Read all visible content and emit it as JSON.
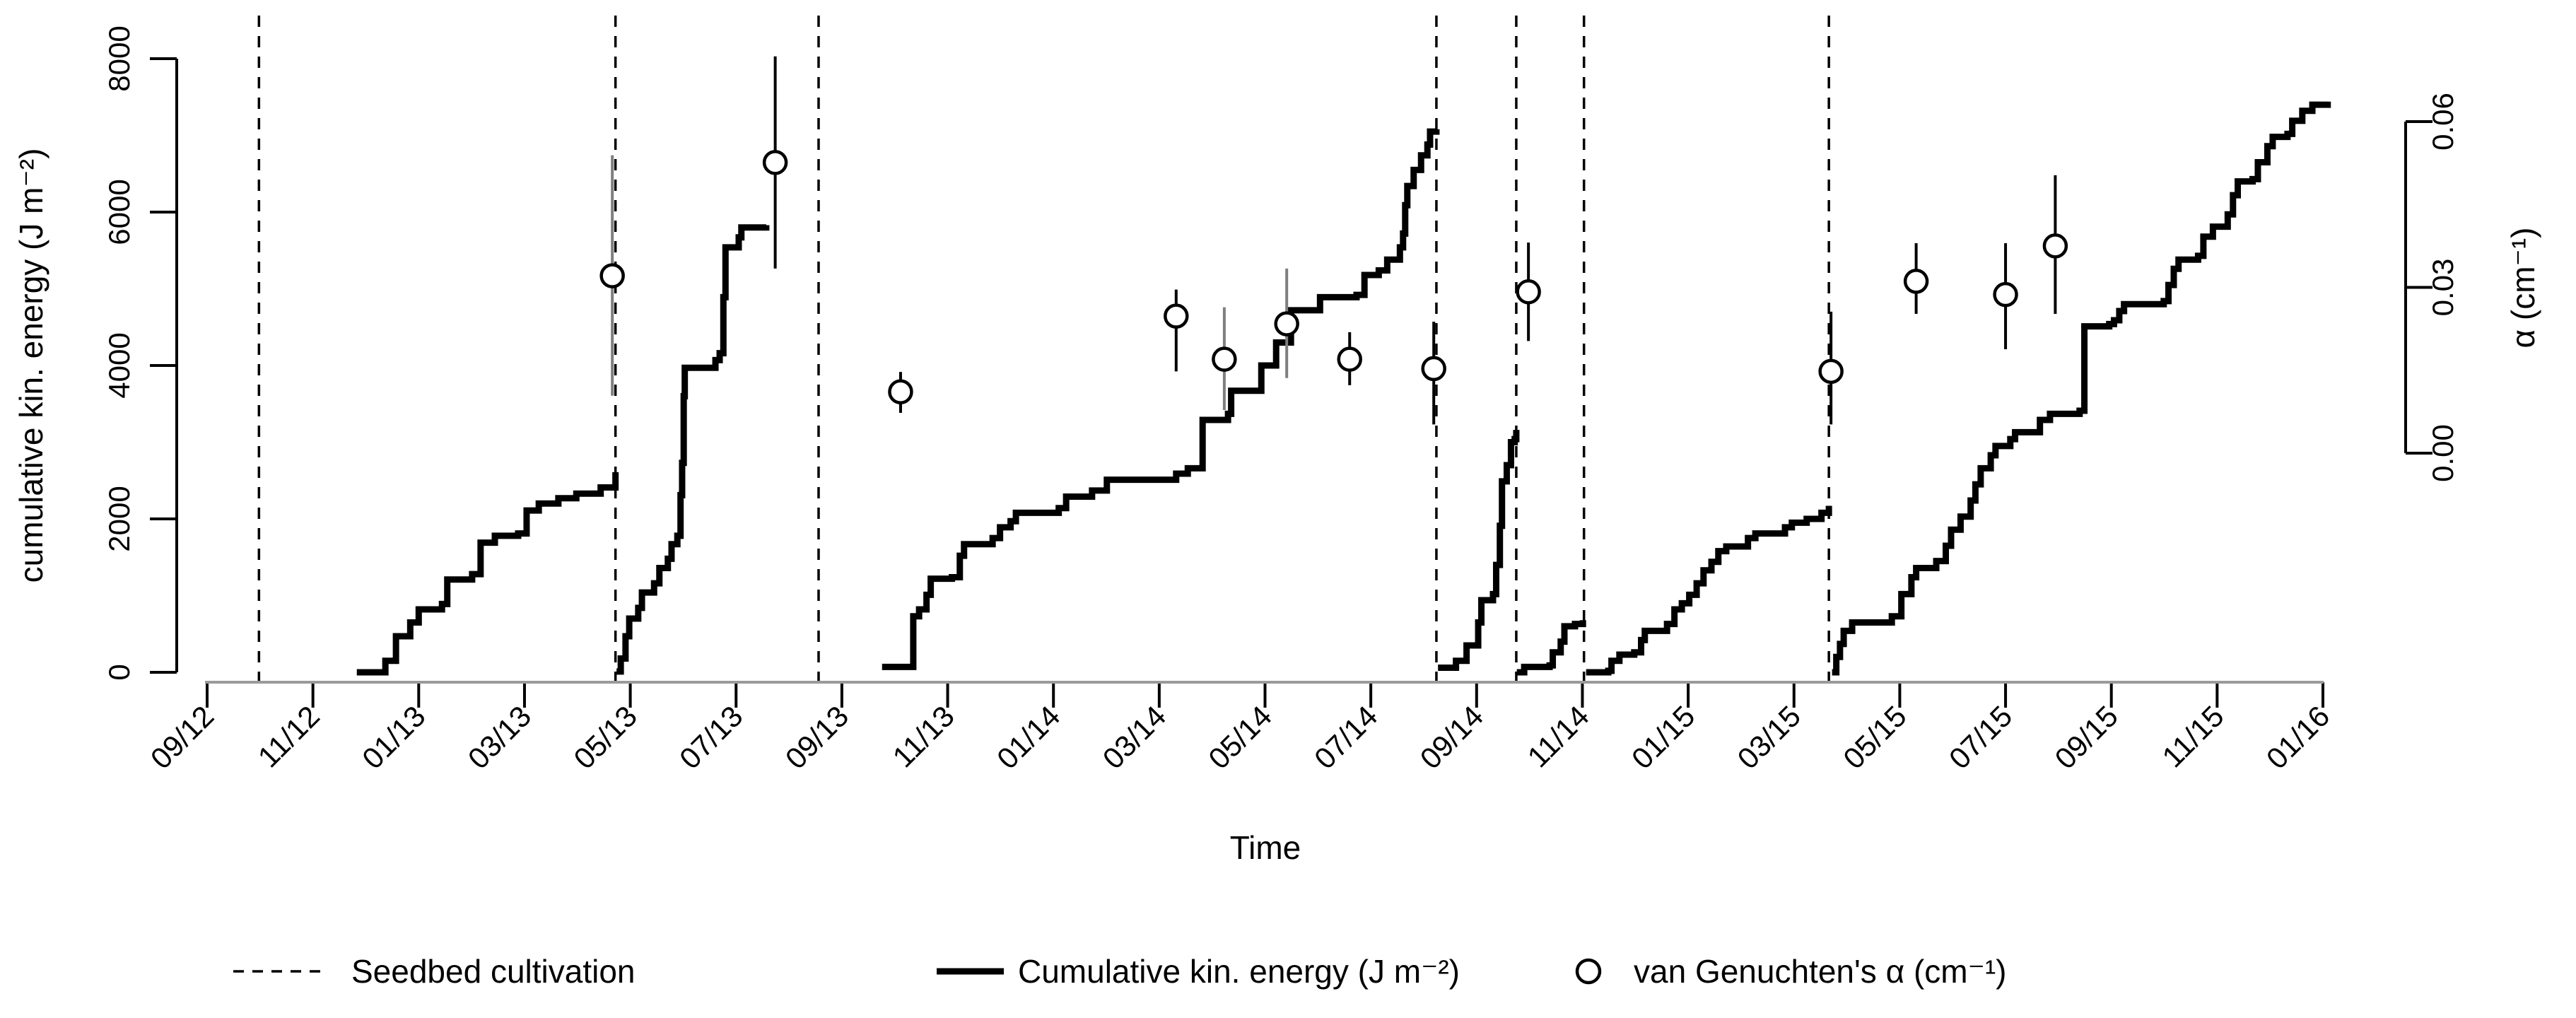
{
  "figure": {
    "x_axis": {
      "label": "Time",
      "tick_labels": [
        "09/12",
        "11/12",
        "01/13",
        "03/13",
        "05/13",
        "07/13",
        "09/13",
        "11/13",
        "01/14",
        "03/14",
        "05/14",
        "07/14",
        "09/14",
        "11/14",
        "01/15",
        "03/15",
        "05/15",
        "07/15",
        "09/15",
        "11/15",
        "01/16"
      ]
    },
    "left_axis": {
      "label": "cumulative kin. energy (J m⁻²)",
      "tick_labels": [
        "0",
        "2000",
        "4000",
        "6000",
        "8000"
      ]
    },
    "right_axis": {
      "label": "α (cm⁻¹)",
      "tick_labels": [
        "0.00",
        "0.03",
        "0.06"
      ]
    },
    "legend": {
      "seedbed_label": "Seedbed cultivation",
      "energy_label": "Cumulative kin. energy (J m⁻²)",
      "alpha_label": "van Genuchten's α (cm⁻¹)"
    },
    "colors": {
      "line": "#000000",
      "x_axis_line": "#9a9a9a",
      "gray_error_bar": "#7f7f7f",
      "background": "#ffffff"
    }
  },
  "chart_data": {
    "type": "line",
    "title": "",
    "xlabel": "Time",
    "ylabel_left": "cumulative kin. energy (J m⁻²)",
    "ylabel_right": "α (cm⁻¹)",
    "x_convention": "months elapsed since the 09/12 (Sep 2012) tick; 2 months per tick",
    "x_range_months": [
      0,
      40
    ],
    "ylim_left": [
      0,
      8000
    ],
    "ylim_right": [
      0,
      0.06
    ],
    "left_ticks": [
      0,
      2000,
      4000,
      6000,
      8000
    ],
    "right_ticks": [
      0.0,
      0.03,
      0.06
    ],
    "grid": false,
    "legend_position": "bottom",
    "seedbed_cultivation_months": [
      0.98,
      7.72,
      11.56,
      23.24,
      24.75,
      26.03,
      30.66
    ],
    "energy_series": [
      {
        "name": "season-2012-13a",
        "points": [
          [
            2.83,
            0
          ],
          [
            3.37,
            150
          ],
          [
            3.57,
            470
          ],
          [
            3.84,
            650
          ],
          [
            4.0,
            820
          ],
          [
            4.44,
            890
          ],
          [
            4.54,
            1210
          ],
          [
            5.01,
            1280
          ],
          [
            5.17,
            1690
          ],
          [
            5.44,
            1780
          ],
          [
            5.88,
            1810
          ],
          [
            6.04,
            2110
          ],
          [
            6.27,
            2200
          ],
          [
            6.64,
            2270
          ],
          [
            6.98,
            2330
          ],
          [
            7.44,
            2410
          ],
          [
            7.72,
            2610
          ]
        ]
      },
      {
        "name": "season-2013a",
        "points": [
          [
            7.74,
            10
          ],
          [
            7.82,
            180
          ],
          [
            7.91,
            470
          ],
          [
            7.98,
            700
          ],
          [
            8.15,
            840
          ],
          [
            8.22,
            1040
          ],
          [
            8.45,
            1160
          ],
          [
            8.55,
            1360
          ],
          [
            8.71,
            1480
          ],
          [
            8.78,
            1670
          ],
          [
            8.89,
            1780
          ],
          [
            8.95,
            2310
          ],
          [
            8.98,
            2730
          ],
          [
            9.01,
            3600
          ],
          [
            9.03,
            3970
          ],
          [
            9.61,
            4070
          ],
          [
            9.69,
            4160
          ],
          [
            9.76,
            4890
          ],
          [
            9.8,
            5540
          ],
          [
            10.05,
            5670
          ],
          [
            10.1,
            5800
          ],
          [
            10.57,
            5830
          ]
        ]
      },
      {
        "name": "season-2013-14",
        "points": [
          [
            12.76,
            70
          ],
          [
            13.32,
            70
          ],
          [
            13.35,
            730
          ],
          [
            13.46,
            820
          ],
          [
            13.6,
            1010
          ],
          [
            13.68,
            1220
          ],
          [
            14.08,
            1240
          ],
          [
            14.23,
            1520
          ],
          [
            14.31,
            1670
          ],
          [
            14.85,
            1750
          ],
          [
            14.99,
            1890
          ],
          [
            15.19,
            1970
          ],
          [
            15.29,
            2080
          ],
          [
            16.1,
            2140
          ],
          [
            16.24,
            2290
          ],
          [
            16.73,
            2370
          ],
          [
            17.01,
            2510
          ],
          [
            18.32,
            2590
          ],
          [
            18.54,
            2660
          ],
          [
            18.82,
            3290
          ],
          [
            19.3,
            3370
          ],
          [
            19.36,
            3670
          ],
          [
            19.93,
            4000
          ],
          [
            20.21,
            4300
          ],
          [
            20.49,
            4720
          ],
          [
            21.04,
            4890
          ],
          [
            21.73,
            4920
          ],
          [
            21.88,
            5180
          ],
          [
            22.15,
            5240
          ],
          [
            22.31,
            5380
          ],
          [
            22.55,
            5540
          ],
          [
            22.61,
            5720
          ],
          [
            22.65,
            6090
          ],
          [
            22.69,
            6340
          ],
          [
            22.81,
            6550
          ],
          [
            22.95,
            6740
          ],
          [
            23.07,
            6880
          ],
          [
            23.12,
            7050
          ],
          [
            23.24,
            7080
          ]
        ]
      },
      {
        "name": "season-2014a",
        "points": [
          [
            23.27,
            60
          ],
          [
            23.61,
            150
          ],
          [
            23.81,
            350
          ],
          [
            24.03,
            650
          ],
          [
            24.09,
            940
          ],
          [
            24.31,
            1020
          ],
          [
            24.37,
            1400
          ],
          [
            24.44,
            1910
          ],
          [
            24.48,
            2490
          ],
          [
            24.57,
            2700
          ],
          [
            24.65,
            3000
          ],
          [
            24.72,
            3040
          ],
          [
            24.75,
            3160
          ]
        ]
      },
      {
        "name": "season-2014b",
        "points": [
          [
            24.76,
            0
          ],
          [
            24.9,
            70
          ],
          [
            25.38,
            90
          ],
          [
            25.44,
            260
          ],
          [
            25.59,
            400
          ],
          [
            25.66,
            600
          ],
          [
            25.86,
            630
          ],
          [
            26.01,
            680
          ]
        ]
      },
      {
        "name": "season-2014-15",
        "points": [
          [
            26.07,
            0
          ],
          [
            26.49,
            20
          ],
          [
            26.55,
            150
          ],
          [
            26.7,
            230
          ],
          [
            26.98,
            260
          ],
          [
            27.11,
            420
          ],
          [
            27.18,
            540
          ],
          [
            27.6,
            630
          ],
          [
            27.74,
            820
          ],
          [
            27.88,
            900
          ],
          [
            28.02,
            1010
          ],
          [
            28.16,
            1160
          ],
          [
            28.29,
            1330
          ],
          [
            28.44,
            1440
          ],
          [
            28.57,
            1580
          ],
          [
            28.72,
            1640
          ],
          [
            29.13,
            1750
          ],
          [
            29.27,
            1810
          ],
          [
            29.83,
            1890
          ],
          [
            29.96,
            1950
          ],
          [
            30.24,
            2000
          ],
          [
            30.52,
            2080
          ],
          [
            30.66,
            2170
          ]
        ]
      },
      {
        "name": "season-2015-16",
        "points": [
          [
            30.72,
            0
          ],
          [
            30.8,
            200
          ],
          [
            30.87,
            370
          ],
          [
            30.94,
            540
          ],
          [
            31.1,
            650
          ],
          [
            31.85,
            730
          ],
          [
            32.03,
            1020
          ],
          [
            32.22,
            1240
          ],
          [
            32.31,
            1360
          ],
          [
            32.69,
            1450
          ],
          [
            32.87,
            1650
          ],
          [
            32.97,
            1860
          ],
          [
            33.15,
            2030
          ],
          [
            33.34,
            2240
          ],
          [
            33.43,
            2450
          ],
          [
            33.53,
            2660
          ],
          [
            33.72,
            2830
          ],
          [
            33.81,
            2950
          ],
          [
            34.09,
            3040
          ],
          [
            34.18,
            3130
          ],
          [
            34.65,
            3290
          ],
          [
            34.84,
            3370
          ],
          [
            35.4,
            3410
          ],
          [
            35.49,
            4510
          ],
          [
            35.96,
            4540
          ],
          [
            36.05,
            4590
          ],
          [
            36.15,
            4710
          ],
          [
            36.24,
            4800
          ],
          [
            36.99,
            4840
          ],
          [
            37.08,
            5050
          ],
          [
            37.18,
            5260
          ],
          [
            37.27,
            5380
          ],
          [
            37.64,
            5430
          ],
          [
            37.74,
            5680
          ],
          [
            37.92,
            5810
          ],
          [
            38.2,
            5970
          ],
          [
            38.3,
            6220
          ],
          [
            38.39,
            6400
          ],
          [
            38.67,
            6430
          ],
          [
            38.77,
            6650
          ],
          [
            38.95,
            6860
          ],
          [
            39.05,
            6980
          ],
          [
            39.33,
            7020
          ],
          [
            39.42,
            7190
          ],
          [
            39.61,
            7320
          ],
          [
            39.8,
            7400
          ],
          [
            40.09,
            7440
          ]
        ]
      }
    ],
    "alpha_points": [
      {
        "t": 7.66,
        "alpha": 0.0321,
        "lo": 0.0104,
        "hi": 0.0539,
        "bar_gray": true
      },
      {
        "t": 10.74,
        "alpha": 0.0526,
        "lo": 0.0334,
        "hi": 0.0718,
        "bar_gray": false
      },
      {
        "t": 13.11,
        "alpha": 0.0111,
        "lo": 0.0073,
        "hi": 0.0147,
        "bar_gray": false
      },
      {
        "t": 18.32,
        "alpha": 0.0248,
        "lo": 0.0148,
        "hi": 0.0296,
        "bar_gray": false
      },
      {
        "t": 19.23,
        "alpha": 0.017,
        "lo": 0.0078,
        "hi": 0.0264,
        "bar_gray": true
      },
      {
        "t": 20.41,
        "alpha": 0.0234,
        "lo": 0.0136,
        "hi": 0.0334,
        "bar_gray": true
      },
      {
        "t": 21.6,
        "alpha": 0.017,
        "lo": 0.0123,
        "hi": 0.0219,
        "bar_gray": false
      },
      {
        "t": 23.19,
        "alpha": 0.0153,
        "lo": 0.0052,
        "hi": 0.0238,
        "bar_gray": false
      },
      {
        "t": 24.98,
        "alpha": 0.0292,
        "lo": 0.0203,
        "hi": 0.0381,
        "bar_gray": false
      },
      {
        "t": 30.7,
        "alpha": 0.0148,
        "lo": 0.0052,
        "hi": 0.0256,
        "bar_gray": false
      },
      {
        "t": 32.31,
        "alpha": 0.0311,
        "lo": 0.0252,
        "hi": 0.038,
        "bar_gray": false
      },
      {
        "t": 34.0,
        "alpha": 0.0287,
        "lo": 0.0188,
        "hi": 0.038,
        "bar_gray": false
      },
      {
        "t": 34.94,
        "alpha": 0.0375,
        "lo": 0.0252,
        "hi": 0.0503,
        "bar_gray": false
      }
    ]
  }
}
